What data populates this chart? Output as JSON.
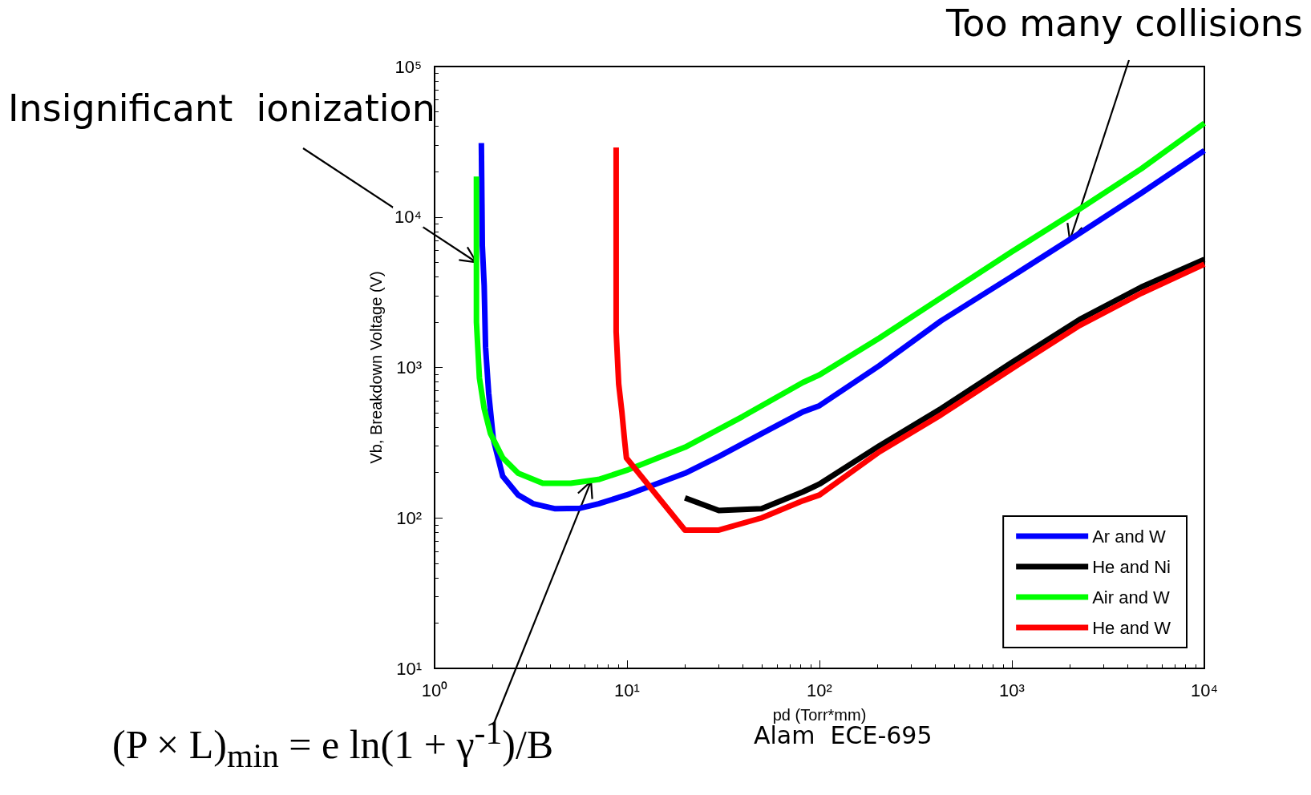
{
  "chart_data": {
    "type": "line",
    "xlabel": "pd (Torr*mm)",
    "ylabel": "Vb, Breakdown Voltage (V)",
    "log": "xy",
    "grid": false,
    "legend": "bottom right",
    "marker": "none",
    "line_style": "solid",
    "xlim": [
      1,
      10000
    ],
    "ylim": [
      10,
      100000
    ],
    "xticks": [
      {
        "value": 1,
        "label": "10⁰"
      },
      {
        "value": 10,
        "label": "10¹"
      },
      {
        "value": 100,
        "label": "10²"
      },
      {
        "value": 1000,
        "label": "10³"
      },
      {
        "value": 10000,
        "label": "10⁴"
      }
    ],
    "yticks": [
      {
        "value": 10,
        "label": "10¹"
      },
      {
        "value": 100,
        "label": "10²"
      },
      {
        "value": 1000,
        "label": "10³"
      },
      {
        "value": 10000,
        "label": "10⁴"
      },
      {
        "value": 100000,
        "label": "10⁵"
      }
    ],
    "series": [
      {
        "name": "Ar and W",
        "color": "#0000ff",
        "x": [
          1.75,
          1.77,
          1.81,
          1.84,
          1.91,
          2.02,
          2.26,
          2.72,
          3.27,
          4.24,
          5.7,
          7.11,
          9.93,
          20,
          30,
          50,
          82,
          100,
          205,
          428,
          1000,
          2250,
          4700,
          10000
        ],
        "values": [
          31000,
          6450,
          3500,
          1365,
          675,
          333,
          189,
          142,
          124,
          115,
          116,
          124,
          142,
          198,
          256,
          363,
          507,
          557,
          1030,
          2040,
          4030,
          7800,
          14400,
          27600
        ]
      },
      {
        "name": "He and Ni",
        "color": "#000000",
        "x": [
          20,
          30,
          50,
          82,
          100,
          205,
          428,
          1000,
          2250,
          4700,
          10000
        ],
        "values": [
          136,
          112,
          115,
          149,
          168,
          302,
          532,
          1080,
          2085,
          3420,
          5220
        ]
      },
      {
        "name": "Air and W",
        "color": "#00ff00",
        "x": [
          1.65,
          1.65,
          1.71,
          1.81,
          1.95,
          2.26,
          2.72,
          3.65,
          5.1,
          7.11,
          9.93,
          20,
          40,
          82,
          100,
          205,
          428,
          1000,
          2250,
          4700,
          10000
        ],
        "values": [
          18600,
          2000,
          850,
          532,
          364,
          251,
          198,
          170,
          170,
          180,
          207,
          295,
          473,
          795,
          893,
          1570,
          2900,
          5880,
          11300,
          20900,
          42000
        ]
      },
      {
        "name": "He and W",
        "color": "#ff0000",
        "x": [
          8.78,
          8.78,
          9.05,
          9.4,
          9.7,
          9.93,
          20,
          30,
          50,
          82,
          100,
          205,
          428,
          1000,
          2250,
          4700,
          10000
        ],
        "values": [
          29000,
          1725,
          776,
          508,
          332,
          250,
          83,
          83,
          100,
          130,
          142,
          275,
          484,
          982,
          1900,
          3110,
          4860
        ]
      }
    ],
    "annotations": [
      {
        "text": "Insignificant  ionization",
        "x": 1.65,
        "y": 5000
      },
      {
        "text": "Too many collisions",
        "x": 2000,
        "y": 7000
      },
      {
        "text": "(P × L)$_{min}$ = e ln(1 + γ$^{-1}$)/B",
        "x": 6.5,
        "y": 175
      },
      "Alam  ECE-695"
    ]
  }
}
